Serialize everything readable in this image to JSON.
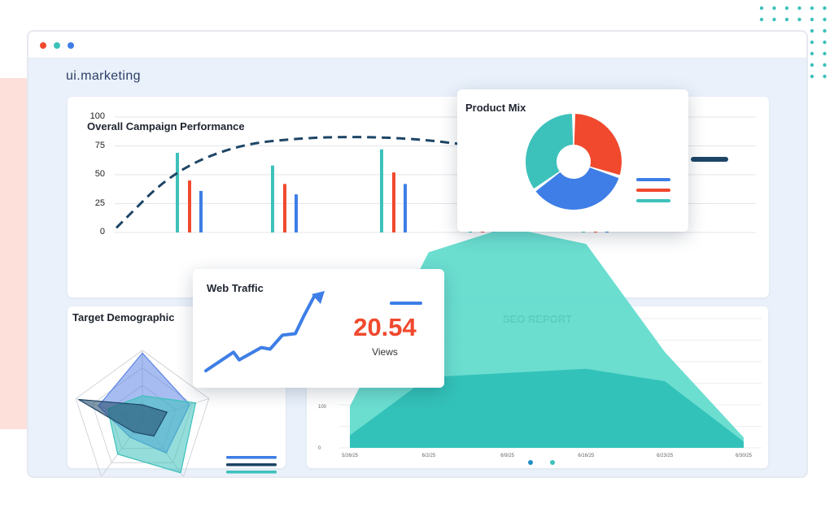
{
  "brand": "ui.marketing",
  "colors": {
    "teal": "#3dc1bb",
    "red": "#f0492e",
    "blue": "#3e7ee6",
    "navy": "#1d4566",
    "seo_light": "#5edbcc",
    "seo_dark": "#2fbfb6",
    "radar_blue": "#5f86e6"
  },
  "window_dots": [
    "#f0492e",
    "#3dc1bb",
    "#3e7ee6"
  ],
  "campaign": {
    "title": "Overall Campaign Performance",
    "chart_data": {
      "type": "bar",
      "ylim": [
        0,
        100
      ],
      "y_ticks": [
        "100",
        "75",
        "50",
        "25",
        "0"
      ],
      "series": [
        {
          "values": [
            69,
            58,
            72,
            30,
            30
          ],
          "color": "#3dc1bb"
        },
        {
          "values": [
            45,
            42,
            52,
            30,
            30
          ],
          "color": "#f0492e"
        },
        {
          "values": [
            36,
            33,
            42,
            30,
            30
          ],
          "color": "#3e7ee6"
        }
      ],
      "trend": {
        "type": "line",
        "style": "dashed",
        "values": [
          4,
          52,
          76,
          82,
          83,
          81,
          76
        ]
      }
    }
  },
  "product_mix": {
    "title": "Product Mix",
    "chart_data": {
      "type": "pie",
      "slices": [
        {
          "value": 30,
          "color": "#f0492e"
        },
        {
          "value": 35,
          "color": "#3e7ee6"
        },
        {
          "value": 35,
          "color": "#3dc1bb"
        }
      ],
      "legend_colors": [
        "#3e7ee6",
        "#f0492e",
        "#3dc1bb"
      ]
    }
  },
  "web_traffic": {
    "title": "Web Traffic",
    "value": "20.54",
    "value_label": "Views",
    "chart_data": {
      "type": "line",
      "values": [
        2,
        26,
        16,
        32,
        30,
        48,
        50,
        72,
        100
      ]
    }
  },
  "target_demographic": {
    "title": "Target Demographic",
    "chart_data": {
      "type": "radar",
      "axes": 5,
      "series": [
        {
          "values": [
            0.96,
            0.71,
            0.58,
            0.3,
            0.66
          ],
          "color": "#5f86e6"
        },
        {
          "values": [
            0.35,
            0.8,
            0.93,
            0.6,
            0.52
          ],
          "color": "#3dc1bb"
        },
        {
          "values": [
            0.22,
            0.37,
            0.28,
            0.21,
            0.96
          ],
          "color": "#1d4566"
        }
      ],
      "legend_colors": [
        "#3e7ee6",
        "#1d4566",
        "#3dc1bb"
      ]
    }
  },
  "seo": {
    "title": "SEO REPORT",
    "chart_data": {
      "type": "area",
      "x": [
        "5/26/25",
        "6/2/25",
        "6/9/25",
        "6/16/25",
        "6/23/25",
        "6/30/25"
      ],
      "y_ticks": [
        "200",
        "100",
        "0"
      ],
      "ylim": [
        0,
        560
      ],
      "series": [
        {
          "values": [
            100,
            470,
            530,
            490,
            230,
            25
          ],
          "color": "#5edbcc"
        },
        {
          "values": [
            30,
            170,
            180,
            190,
            160,
            15
          ],
          "color": "#2fbfb6"
        }
      ]
    },
    "pager_dots": [
      "#1f8fc7",
      "#3dc1bb"
    ]
  }
}
